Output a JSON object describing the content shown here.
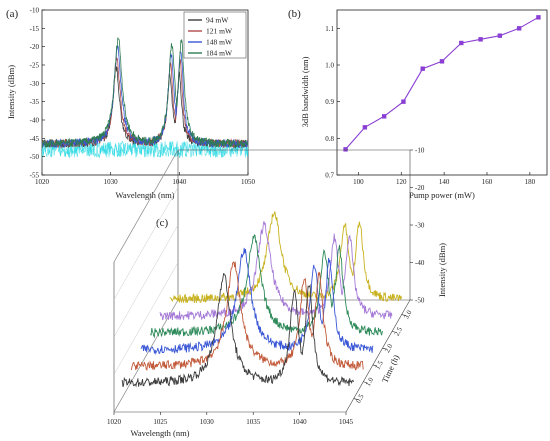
{
  "panels": [
    {
      "label": "(a)",
      "chart_data": {
        "type": "line",
        "xlabel": "Wavelength (nm)",
        "ylabel": "Intensity (dBm)",
        "xlim": [
          1020,
          1050
        ],
        "ylim": [
          -55,
          -10
        ],
        "xticks": [
          1020,
          1030,
          1040,
          1050
        ],
        "yticks": [
          -55,
          -50,
          -45,
          -40,
          -35,
          -30,
          -25,
          -20,
          -15,
          -10
        ],
        "legend_position": "top-right",
        "noise_floor": -46.5,
        "series": [
          {
            "name": "94 mW",
            "color": "#3d3d3d",
            "peaks": [
              {
                "x": 1030.8,
                "y": -25.5,
                "w": 0.55
              },
              {
                "x": 1038.6,
                "y": -28.0,
                "w": 0.45
              },
              {
                "x": 1040.0,
                "y": -27.0,
                "w": 0.4
              }
            ]
          },
          {
            "name": "121 mW",
            "color": "#b04a4a",
            "peaks": [
              {
                "x": 1030.9,
                "y": -23.0,
                "w": 0.58
              },
              {
                "x": 1038.7,
                "y": -25.0,
                "w": 0.47
              },
              {
                "x": 1040.1,
                "y": -24.0,
                "w": 0.42
              }
            ]
          },
          {
            "name": "148 mW",
            "color": "#3a57d6",
            "peaks": [
              {
                "x": 1031.0,
                "y": -20.0,
                "w": 0.62
              },
              {
                "x": 1038.8,
                "y": -22.0,
                "w": 0.5
              },
              {
                "x": 1040.2,
                "y": -21.0,
                "w": 0.45
              }
            ]
          },
          {
            "name": "184 mW",
            "color": "#2e7d52",
            "peaks": [
              {
                "x": 1031.1,
                "y": -17.5,
                "w": 0.68
              },
              {
                "x": 1038.9,
                "y": -19.0,
                "w": 0.55
              },
              {
                "x": 1040.3,
                "y": -18.0,
                "w": 0.5
              }
            ]
          }
        ],
        "noise_color": "#18d6e0"
      }
    },
    {
      "label": "(b)",
      "chart_data": {
        "type": "line",
        "xlabel": "Pump power (mW)",
        "ylabel": "3dB bandwidth (nm)",
        "xlim": [
          90,
          188
        ],
        "ylim": [
          0.7,
          1.15
        ],
        "xticks": [
          100,
          120,
          140,
          160,
          180
        ],
        "yticks": [
          0.7,
          0.8,
          0.9,
          1.0,
          1.1
        ],
        "color": "#8a3fd4",
        "x": [
          94,
          103,
          112,
          121,
          130,
          139,
          148,
          157,
          166,
          175,
          184
        ],
        "y": [
          0.77,
          0.83,
          0.86,
          0.9,
          0.99,
          1.01,
          1.06,
          1.07,
          1.08,
          1.1,
          1.13
        ]
      }
    },
    {
      "label": "(c)",
      "chart_data": {
        "type": "line",
        "xlabel": "Wavelength (nm)",
        "ylabel": "Intensity (dBm)",
        "zlabel": "Time (h)",
        "xlim": [
          1020,
          1045
        ],
        "zlim": [
          -50,
          -10
        ],
        "xticks": [
          1020,
          1025,
          1030,
          1035,
          1040,
          1045
        ],
        "zticks": [
          -50,
          -40,
          -30,
          -20,
          -10
        ],
        "tticks": [
          "0.5",
          "1.0",
          "1.5",
          "2.0",
          "2.5",
          "3.0"
        ],
        "noise_floor": -46.0,
        "series_colors": [
          "#3d3d3d",
          "#c25a3a",
          "#3a57d6",
          "#2e8a5a",
          "#a57ad6",
          "#c8b21e"
        ],
        "peaks": [
          {
            "x": 1031.0,
            "y": -17.0,
            "w": 0.9
          },
          {
            "x": 1038.6,
            "y": -21.0,
            "w": 0.55
          },
          {
            "x": 1040.2,
            "y": -20.0,
            "w": 0.5
          }
        ]
      }
    }
  ]
}
